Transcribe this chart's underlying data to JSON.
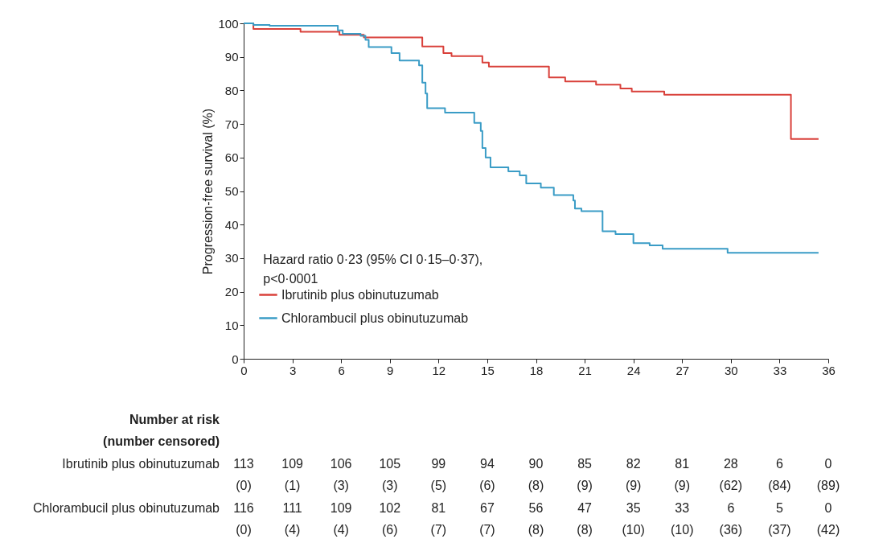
{
  "chart_data": {
    "type": "step",
    "ylabel": "Progression-free survival (%)",
    "xlim": [
      0,
      36
    ],
    "xticks": [
      0,
      3,
      6,
      9,
      12,
      15,
      18,
      21,
      24,
      27,
      30,
      33,
      36
    ],
    "ylim": [
      0,
      100
    ],
    "yticks": [
      0,
      10,
      20,
      30,
      40,
      50,
      60,
      70,
      80,
      90,
      100
    ],
    "grid": false,
    "legend": "bottom left",
    "line_style": "solid",
    "series": [
      {
        "name": "Ibrutinib plus obinutuzumab",
        "color": "#d9403a",
        "x": [
          0,
          0.6,
          3.5,
          5.9,
          7.4,
          11.0,
          12.3,
          12.8,
          14.7,
          15.1,
          18.8,
          19.8,
          21.7,
          23.2,
          23.9,
          25.9,
          33.7,
          35.4
        ],
        "values": [
          100,
          98.3,
          97.5,
          96.6,
          95.8,
          93.1,
          91.1,
          90.2,
          88.3,
          87.1,
          83.9,
          82.7,
          81.7,
          80.6,
          79.7,
          78.7,
          65.5,
          65.5
        ]
      },
      {
        "name": "Chlorambucil plus obinutuzumab",
        "color": "#3a9cc6",
        "x": [
          0,
          0.6,
          1.6,
          5.8,
          6.1,
          7.2,
          7.5,
          7.7,
          9.1,
          9.6,
          10.8,
          11.0,
          11.2,
          11.3,
          12.4,
          14.2,
          14.6,
          14.7,
          14.9,
          15.2,
          16.3,
          17.0,
          17.4,
          18.3,
          19.1,
          20.3,
          20.4,
          20.8,
          22.1,
          22.9,
          24.0,
          25.0,
          25.8,
          29.8,
          35.4
        ],
        "values": [
          100,
          99.5,
          99.3,
          97.9,
          96.9,
          96.3,
          95.1,
          92.9,
          91.1,
          88.9,
          87.5,
          82.3,
          79.1,
          74.7,
          73.4,
          70.3,
          67.9,
          62.8,
          60.0,
          57.1,
          55.9,
          54.7,
          52.3,
          51.0,
          48.8,
          47.2,
          44.8,
          44.0,
          38.0,
          37.2,
          34.5,
          33.8,
          32.8,
          31.6,
          31.6
        ]
      }
    ],
    "annotations": [
      "Hazard ratio 0·23 (95% CI 0·15–0·37),",
      "p<0·0001",
      "Number at risk",
      "(number censored)",
      "113 109 106 105 99 94 90 85 82 81 28 6 0",
      "(0) (1) (3) (3) (5) (6) (8) (9) (9) (9) (62) (84) (89)",
      "116 111 109 102 81 67 56 47 35 33 6 5 0",
      "(0) (4) (4) (6) (7) (7) (8) (8) (10) (10) (36) (37) (42)"
    ]
  }
}
